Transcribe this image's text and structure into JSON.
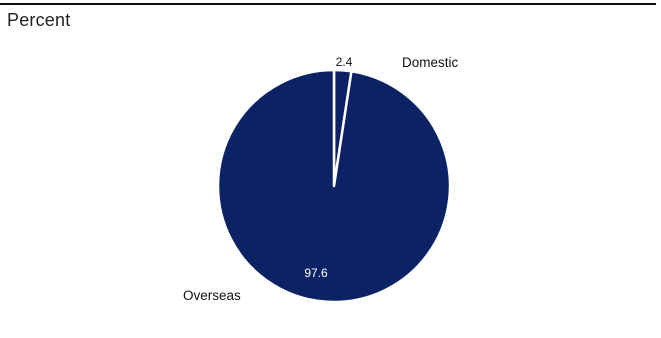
{
  "unit_label": "Percent",
  "colors": {
    "overseas": "#0b2265",
    "domestic": "#0b2265",
    "separator": "#ffffff",
    "inside_label": "#ffffff",
    "outside_label": "#111111"
  },
  "chart_data": {
    "type": "pie",
    "ylabel": "Percent",
    "slices": [
      {
        "name": "Domestic",
        "value": 2.4,
        "value_label": "2.4"
      },
      {
        "name": "Overseas",
        "value": 97.6,
        "value_label": "97.6"
      }
    ]
  }
}
